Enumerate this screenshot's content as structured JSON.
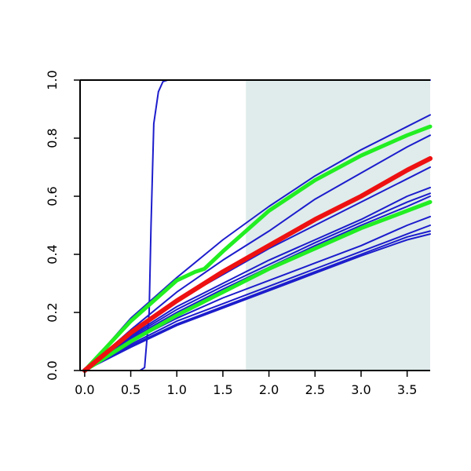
{
  "chart_data": {
    "type": "line",
    "title": "",
    "xlabel": "",
    "ylabel": "",
    "xlim": [
      -0.05,
      3.75
    ],
    "ylim": [
      0.0,
      1.0
    ],
    "x_ticks": [
      "0.0",
      "0.5",
      "1.0",
      "1.5",
      "2.0",
      "2.5",
      "3.0",
      "3.5"
    ],
    "x_tick_values": [
      0.0,
      0.5,
      1.0,
      1.5,
      2.0,
      2.5,
      3.0,
      3.5
    ],
    "y_ticks": [
      "0.0",
      "0.2",
      "0.4",
      "0.6",
      "0.8",
      "1.0"
    ],
    "y_tick_values": [
      0.0,
      0.2,
      0.4,
      0.6,
      0.8,
      1.0
    ],
    "grid": false,
    "legend": "none",
    "shaded_region": {
      "x_from": 1.75,
      "x_to": 3.75,
      "y_from": 0.0,
      "y_to": 1.0,
      "color": "#dfeceb"
    },
    "colors": {
      "blue": "#1c1ccc",
      "green": "#22ee22",
      "red": "#ee1111",
      "frame": "#000000"
    },
    "series": [
      {
        "color": "blue",
        "width": 2,
        "x": [
          0.0,
          0.6,
          0.65,
          0.7,
          0.72,
          0.75,
          0.8,
          0.85,
          0.9,
          3.75
        ],
        "y": [
          0.0,
          0.0,
          0.01,
          0.2,
          0.5,
          0.85,
          0.96,
          0.995,
          1.0,
          1.0
        ]
      },
      {
        "color": "blue",
        "width": 2,
        "x": [
          0.0,
          0.5,
          1.0,
          1.5,
          2.0,
          2.5,
          3.0,
          3.5,
          3.75
        ],
        "y": [
          0.0,
          0.18,
          0.32,
          0.45,
          0.565,
          0.67,
          0.76,
          0.84,
          0.88
        ]
      },
      {
        "color": "blue",
        "width": 2,
        "x": [
          0.0,
          0.5,
          1.0,
          1.5,
          2.0,
          2.5,
          3.0,
          3.5,
          3.75
        ],
        "y": [
          0.0,
          0.14,
          0.27,
          0.38,
          0.48,
          0.59,
          0.68,
          0.77,
          0.81
        ]
      },
      {
        "color": "blue",
        "width": 2,
        "x": [
          0.0,
          0.5,
          1.0,
          1.5,
          2.0,
          2.5,
          3.0,
          3.5,
          3.75
        ],
        "y": [
          0.0,
          0.13,
          0.24,
          0.33,
          0.42,
          0.5,
          0.58,
          0.66,
          0.7
        ]
      },
      {
        "color": "blue",
        "width": 2,
        "x": [
          0.0,
          0.5,
          1.0,
          1.5,
          2.0,
          2.5,
          3.0,
          3.5,
          3.75
        ],
        "y": [
          0.0,
          0.12,
          0.22,
          0.3,
          0.38,
          0.45,
          0.52,
          0.6,
          0.63
        ]
      },
      {
        "color": "blue",
        "width": 2,
        "x": [
          0.0,
          0.5,
          1.0,
          1.5,
          2.0,
          2.5,
          3.0,
          3.5,
          3.75
        ],
        "y": [
          0.0,
          0.115,
          0.21,
          0.29,
          0.365,
          0.44,
          0.51,
          0.58,
          0.61
        ]
      },
      {
        "color": "blue",
        "width": 2,
        "x": [
          0.0,
          0.5,
          1.0,
          1.5,
          2.0,
          2.5,
          3.0,
          3.5,
          3.75
        ],
        "y": [
          0.0,
          0.11,
          0.2,
          0.28,
          0.355,
          0.43,
          0.5,
          0.565,
          0.6
        ]
      },
      {
        "color": "blue",
        "width": 2,
        "x": [
          0.0,
          0.5,
          1.0,
          1.5,
          2.0,
          2.5,
          3.0,
          3.5,
          3.75
        ],
        "y": [
          0.0,
          0.1,
          0.18,
          0.25,
          0.31,
          0.37,
          0.43,
          0.5,
          0.53
        ]
      },
      {
        "color": "blue",
        "width": 2,
        "x": [
          0.0,
          0.5,
          1.0,
          1.5,
          2.0,
          2.5,
          3.0,
          3.5,
          3.75
        ],
        "y": [
          0.0,
          0.09,
          0.17,
          0.23,
          0.29,
          0.35,
          0.41,
          0.47,
          0.5
        ]
      },
      {
        "color": "blue",
        "width": 2,
        "x": [
          0.0,
          0.5,
          1.0,
          1.5,
          2.0,
          2.5,
          3.0,
          3.5,
          3.75
        ],
        "y": [
          0.0,
          0.085,
          0.16,
          0.22,
          0.28,
          0.34,
          0.4,
          0.46,
          0.48
        ]
      },
      {
        "color": "blue",
        "width": 2,
        "x": [
          0.0,
          0.5,
          1.0,
          1.5,
          2.0,
          2.5,
          3.0,
          3.5,
          3.75
        ],
        "y": [
          0.0,
          0.08,
          0.155,
          0.215,
          0.275,
          0.335,
          0.395,
          0.45,
          0.47
        ]
      },
      {
        "color": "green",
        "width": 5,
        "x": [
          0.0,
          0.5,
          1.0,
          1.2,
          1.3,
          1.5,
          2.0,
          2.5,
          3.0,
          3.5,
          3.75
        ],
        "y": [
          0.0,
          0.17,
          0.31,
          0.34,
          0.35,
          0.41,
          0.55,
          0.655,
          0.74,
          0.81,
          0.84
        ]
      },
      {
        "color": "green",
        "width": 5,
        "x": [
          0.0,
          0.5,
          1.0,
          1.5,
          2.0,
          2.5,
          3.0,
          3.5,
          3.75
        ],
        "y": [
          0.0,
          0.1,
          0.19,
          0.27,
          0.35,
          0.42,
          0.49,
          0.55,
          0.58
        ]
      },
      {
        "color": "red",
        "width": 6,
        "x": [
          0.0,
          0.5,
          1.0,
          1.5,
          2.0,
          2.5,
          3.0,
          3.5,
          3.75
        ],
        "y": [
          0.0,
          0.13,
          0.24,
          0.34,
          0.43,
          0.52,
          0.6,
          0.69,
          0.73
        ]
      }
    ]
  }
}
